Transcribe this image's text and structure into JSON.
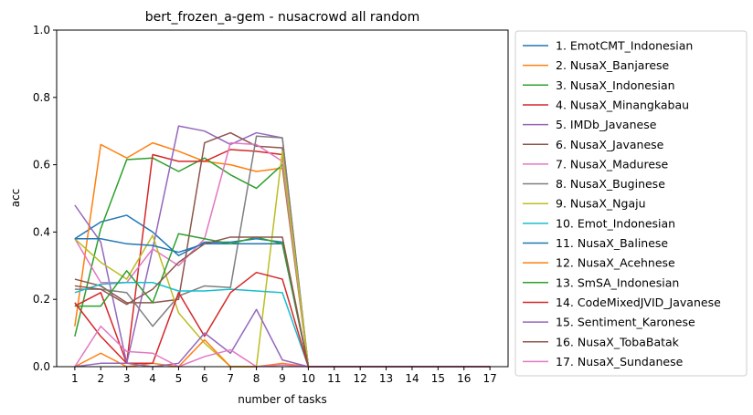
{
  "chart_data": {
    "type": "line",
    "title": "bert_frozen_a-gem - nusacrowd all random",
    "xlabel": "number of tasks",
    "ylabel": "acc",
    "xlim": [
      0.3,
      17.7
    ],
    "ylim": [
      0,
      1.0
    ],
    "x": [
      1,
      2,
      3,
      4,
      5,
      6,
      7,
      8,
      9,
      10,
      11,
      12,
      13,
      14,
      15,
      16,
      17
    ],
    "x_ticks": [
      "1",
      "2",
      "3",
      "4",
      "5",
      "6",
      "7",
      "8",
      "9",
      "10",
      "11",
      "12",
      "13",
      "14",
      "15",
      "16",
      "17"
    ],
    "y_ticks": [
      "0.0",
      "0.2",
      "0.4",
      "0.6",
      "0.8",
      "1.0"
    ],
    "grid": false,
    "legend_position": "outside-right",
    "series": [
      {
        "name": "1. EmotCMT_Indonesian",
        "color": "#1f77b4",
        "values": [
          0.38,
          0.43,
          0.45,
          0.4,
          0.33,
          0.37,
          0.37,
          0.38,
          0.37,
          0,
          0,
          0,
          0,
          0,
          0,
          0,
          0
        ]
      },
      {
        "name": "2. NusaX_Banjarese",
        "color": "#ff7f0e",
        "values": [
          0.12,
          0.66,
          0.62,
          0.665,
          0.64,
          0.61,
          0.6,
          0.58,
          0.59,
          0,
          0,
          0,
          0,
          0,
          0,
          0,
          0
        ]
      },
      {
        "name": "3. NusaX_Indonesian",
        "color": "#2ca02c",
        "values": [
          0.09,
          0.41,
          0.615,
          0.62,
          0.58,
          0.62,
          0.57,
          0.53,
          0.6,
          0,
          0,
          0,
          0,
          0,
          0,
          0,
          0
        ]
      },
      {
        "name": "4. NusaX_Minangkabau",
        "color": "#d62728",
        "values": [
          0.18,
          0.22,
          0.01,
          0.63,
          0.61,
          0.61,
          0.645,
          0.64,
          0.63,
          0,
          0,
          0,
          0,
          0,
          0,
          0,
          0
        ]
      },
      {
        "name": "5. IMDb_Javanese",
        "color": "#9467bd",
        "values": [
          0.48,
          0.37,
          0.01,
          0.35,
          0.715,
          0.7,
          0.66,
          0.695,
          0.68,
          0,
          0,
          0,
          0,
          0,
          0,
          0,
          0
        ]
      },
      {
        "name": "6. NusaX_Javanese",
        "color": "#8c564b",
        "values": [
          0.26,
          0.24,
          0.19,
          0.19,
          0.2,
          0.665,
          0.695,
          0.655,
          0.65,
          0,
          0,
          0,
          0,
          0,
          0,
          0,
          0
        ]
      },
      {
        "name": "7. NusaX_Madurese",
        "color": "#e377c2",
        "values": [
          0.38,
          0.25,
          0.25,
          0.35,
          0.3,
          0.38,
          0.665,
          0.66,
          0.61,
          0,
          0,
          0,
          0,
          0,
          0,
          0,
          0
        ]
      },
      {
        "name": "8. NusaX_Buginese",
        "color": "#7f7f7f",
        "values": [
          0.23,
          0.23,
          0.22,
          0.12,
          0.21,
          0.24,
          0.235,
          0.685,
          0.68,
          0,
          0,
          0,
          0,
          0,
          0,
          0,
          0
        ]
      },
      {
        "name": "9. NusaX_Ngaju",
        "color": "#bcbd22",
        "values": [
          0.38,
          0.31,
          0.26,
          0.39,
          0.16,
          0.07,
          0.0,
          0.0,
          0.64,
          0,
          0,
          0,
          0,
          0,
          0,
          0,
          0
        ]
      },
      {
        "name": "10. Emot_Indonesian",
        "color": "#17becf",
        "values": [
          0.22,
          0.245,
          0.25,
          0.25,
          0.225,
          0.225,
          0.23,
          0.225,
          0.22,
          0,
          0,
          0,
          0,
          0,
          0,
          0,
          0
        ]
      },
      {
        "name": "11. NusaX_Balinese",
        "color": "#1f77b4",
        "values": [
          0.38,
          0.38,
          0.365,
          0.36,
          0.34,
          0.365,
          0.365,
          0.365,
          0.365,
          0,
          0,
          0,
          0,
          0,
          0,
          0,
          0
        ]
      },
      {
        "name": "12. NusaX_Acehnese",
        "color": "#ff7f0e",
        "values": [
          0.0,
          0.04,
          0.0,
          0.01,
          0.0,
          0.08,
          0.0,
          0.0,
          0.01,
          0,
          0,
          0,
          0,
          0,
          0,
          0,
          0
        ]
      },
      {
        "name": "13. SmSA_Indonesian",
        "color": "#2ca02c",
        "values": [
          0.18,
          0.18,
          0.285,
          0.19,
          0.395,
          0.38,
          0.365,
          0.385,
          0.365,
          0,
          0,
          0,
          0,
          0,
          0,
          0,
          0
        ]
      },
      {
        "name": "14. CodeMixedJVID_Javanese",
        "color": "#d62728",
        "values": [
          0.19,
          0.09,
          0.01,
          0.01,
          0.22,
          0.09,
          0.22,
          0.28,
          0.26,
          0,
          0,
          0,
          0,
          0,
          0,
          0,
          0
        ]
      },
      {
        "name": "15. Sentiment_Karonese",
        "color": "#9467bd",
        "values": [
          0.0,
          0.01,
          0.01,
          0.0,
          0.01,
          0.1,
          0.04,
          0.17,
          0.02,
          0,
          0,
          0,
          0,
          0,
          0,
          0,
          0
        ]
      },
      {
        "name": "16. NusaX_TobaBatak",
        "color": "#8c564b",
        "values": [
          0.24,
          0.23,
          0.185,
          0.23,
          0.31,
          0.365,
          0.385,
          0.385,
          0.385,
          0,
          0,
          0,
          0,
          0,
          0,
          0,
          0
        ]
      },
      {
        "name": "17. NusaX_Sundanese",
        "color": "#e377c2",
        "values": [
          0.0,
          0.12,
          0.045,
          0.04,
          0.0,
          0.03,
          0.05,
          0.0,
          0.005,
          0,
          0,
          0,
          0,
          0,
          0,
          0,
          0
        ]
      }
    ]
  }
}
